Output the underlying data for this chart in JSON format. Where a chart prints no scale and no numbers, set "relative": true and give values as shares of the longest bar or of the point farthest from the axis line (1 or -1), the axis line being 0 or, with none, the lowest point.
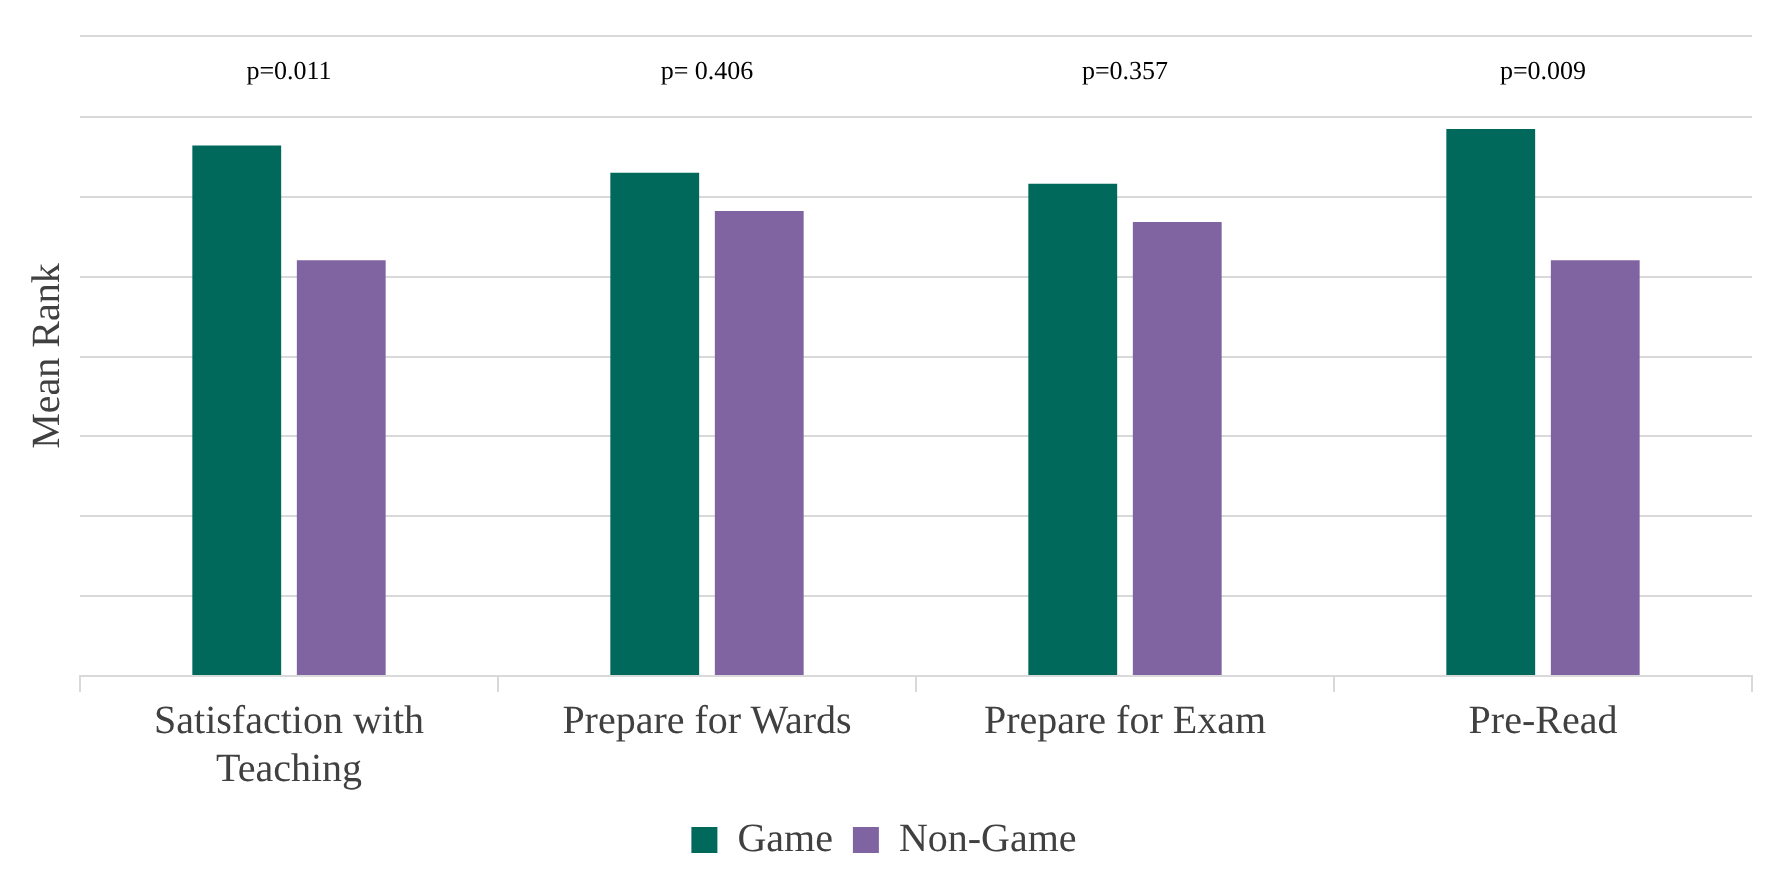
{
  "chart_data": {
    "type": "bar",
    "ylabel": "Mean Rank",
    "relative": true,
    "grid": "y",
    "legend": "bottom",
    "categories": [
      "Satisfaction with Teaching",
      "Prepare for Wards",
      "Prepare for Exam",
      "Pre-Read"
    ],
    "series": [
      {
        "name": "Game",
        "color": "#00695c",
        "values": [
          0.97,
          0.92,
          0.9,
          1
        ]
      },
      {
        "name": "Non-Game",
        "color": "#8064a2",
        "values": [
          0.76,
          0.85,
          0.83,
          0.76
        ]
      }
    ],
    "annotations": [
      "p=0.011",
      "p= 0.406",
      "p=0.357",
      "p=0.009"
    ]
  }
}
